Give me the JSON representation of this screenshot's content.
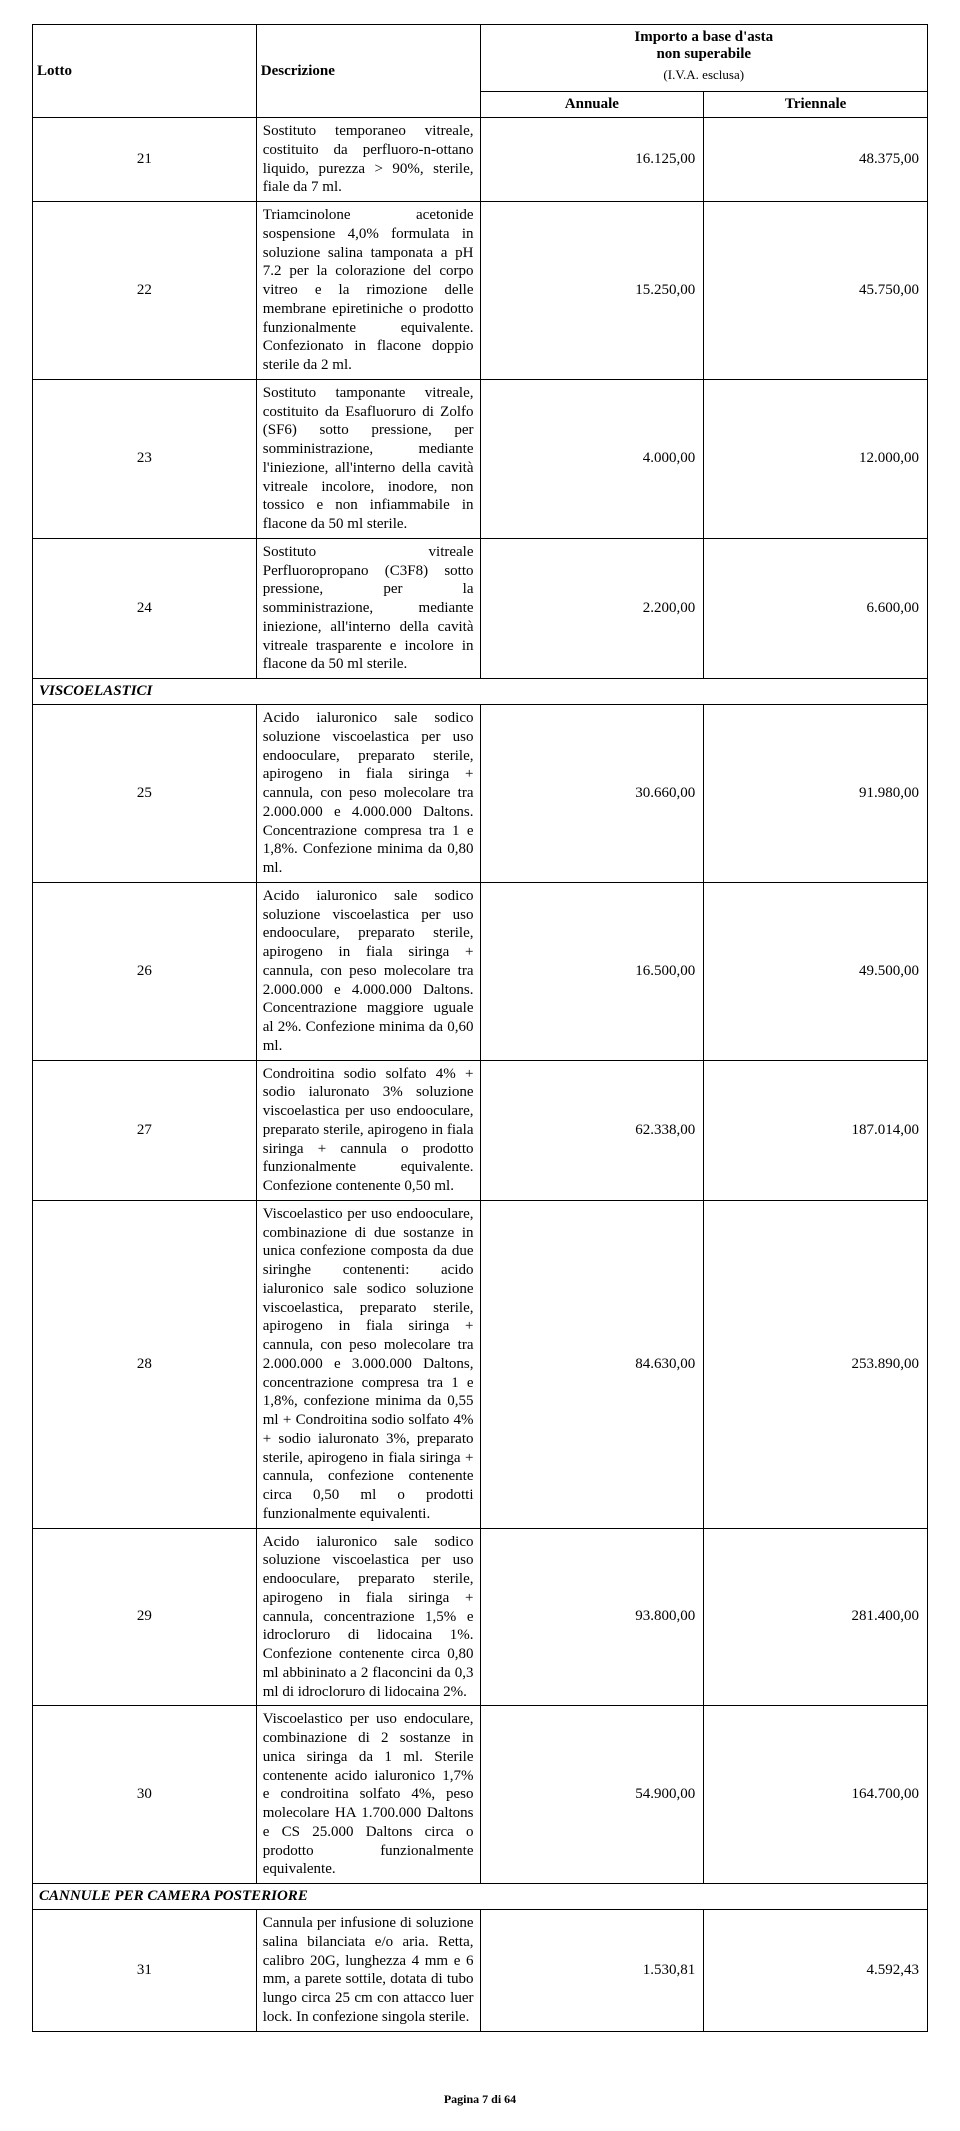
{
  "header": {
    "lotto": "Lotto",
    "descrizione": "Descrizione",
    "importo_line1": "Importo a base d'asta",
    "importo_line2": "non superabile",
    "importo_sub": "(I.V.A. esclusa)",
    "annuale": "Annuale",
    "triennale": "Triennale"
  },
  "sections": {
    "visco": "VISCOELASTICI",
    "cannule": "CANNULE PER CAMERA POSTERIORE"
  },
  "rows": [
    {
      "lotto": "21",
      "desc": "Sostituto temporaneo vitreale, costituito da perfluoro-n-ottano liquido, purezza > 90%, sterile, fiale da 7 ml.",
      "ann": "16.125,00",
      "tri": "48.375,00"
    },
    {
      "lotto": "22",
      "desc": "Triamcinolone acetonide sospensione 4,0% formulata in soluzione salina tamponata a pH 7.2 per la colorazione del corpo vitreo e la rimozione delle membrane epiretiniche o prodotto funzionalmente equivalente. Confezionato in flacone doppio sterile da 2 ml.",
      "ann": "15.250,00",
      "tri": "45.750,00"
    },
    {
      "lotto": "23",
      "desc": "Sostituto tamponante vitreale, costituito da Esafluoruro di Zolfo (SF6) sotto pressione, per somministrazione, mediante l'iniezione, all'interno della cavità vitreale incolore, inodore, non tossico e non infiammabile in flacone da 50 ml sterile.",
      "ann": "4.000,00",
      "tri": "12.000,00"
    },
    {
      "lotto": "24",
      "desc": "Sostituto vitreale Perfluoropropano (C3F8) sotto pressione, per la somministrazione, mediante iniezione, all'interno della cavità vitreale trasparente e incolore in flacone da 50 ml sterile.",
      "ann": "2.200,00",
      "tri": "6.600,00"
    },
    {
      "lotto": "25",
      "desc": "Acido ialuronico sale sodico soluzione viscoelastica per uso endooculare, preparato sterile, apirogeno in fiala siringa + cannula, con peso molecolare tra 2.000.000 e 4.000.000 Daltons. Concentrazione compresa tra 1 e 1,8%. Confezione minima da 0,80 ml.",
      "ann": "30.660,00",
      "tri": "91.980,00"
    },
    {
      "lotto": "26",
      "desc": "Acido ialuronico sale sodico soluzione viscoelastica per uso endooculare, preparato sterile, apirogeno in fiala siringa + cannula, con peso molecolare tra 2.000.000 e 4.000.000 Daltons. Concentrazione maggiore uguale al 2%. Confezione minima da 0,60 ml.",
      "ann": "16.500,00",
      "tri": "49.500,00"
    },
    {
      "lotto": "27",
      "desc": "Condroitina sodio solfato 4% + sodio ialuronato 3% soluzione viscoelastica per uso endooculare, preparato sterile, apirogeno in fiala siringa + cannula o prodotto funzionalmente equivalente. Confezione contenente 0,50 ml.",
      "ann": "62.338,00",
      "tri": "187.014,00"
    },
    {
      "lotto": "28",
      "desc": "Viscoelastico per uso endooculare, combinazione di due sostanze in unica confezione composta da due siringhe contenenti: acido ialuronico sale sodico soluzione viscoelastica, preparato sterile, apirogeno in fiala siringa + cannula, con peso molecolare tra 2.000.000 e 3.000.000 Daltons, concentrazione compresa tra 1 e 1,8%, confezione minima da 0,55 ml + Condroitina sodio solfato 4% + sodio ialuronato 3%, preparato sterile, apirogeno in fiala siringa + cannula, confezione contenente circa 0,50 ml o prodotti funzionalmente equivalenti.",
      "ann": "84.630,00",
      "tri": "253.890,00"
    },
    {
      "lotto": "29",
      "desc": "Acido ialuronico sale sodico soluzione viscoelastica per uso endooculare, preparato sterile, apirogeno in fiala siringa + cannula, concentrazione 1,5% e idrocloruro di lidocaina 1%. Confezione contenente circa 0,80 ml abbininato a 2 flaconcini da 0,3 ml di idrocloruro di lidocaina 2%.",
      "ann": "93.800,00",
      "tri": "281.400,00"
    },
    {
      "lotto": "30",
      "desc": "Viscoelastico per uso endoculare, combinazione di 2 sostanze in unica siringa da 1 ml. Sterile contenente acido ialuronico 1,7% e condroitina solfato 4%, peso molecolare HA 1.700.000 Daltons e CS 25.000 Daltons circa o prodotto funzionalmente equivalente.",
      "ann": "54.900,00",
      "tri": "164.700,00"
    },
    {
      "lotto": "31",
      "desc": "Cannula per infusione di soluzione salina bilanciata e/o aria. Retta, calibro 20G, lunghezza 4 mm e 6 mm, a parete sottile, dotata di tubo lungo circa 25 cm con attacco luer lock. In confezione singola sterile.",
      "ann": "1.530,81",
      "tri": "4.592,43"
    }
  ],
  "footer": "Pagina 7 di 64"
}
